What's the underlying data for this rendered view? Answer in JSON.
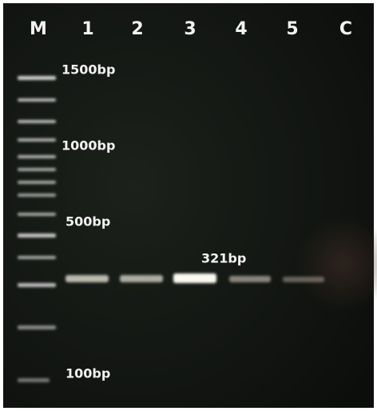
{
  "lanes": [
    "M",
    "1",
    "2",
    "3",
    "4",
    "5",
    "C"
  ],
  "markers": [
    "1500bp",
    "1000bp",
    "500bp",
    "100bp"
  ],
  "product": "321bp"
}
